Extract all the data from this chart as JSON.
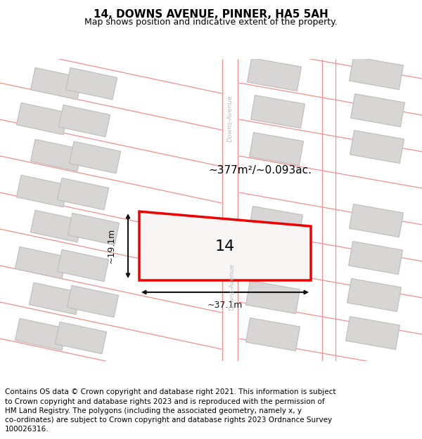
{
  "title": "14, DOWNS AVENUE, PINNER, HA5 5AH",
  "subtitle": "Map shows position and indicative extent of the property.",
  "footer": "Contains OS data © Crown copyright and database right 2021. This information is subject to Crown copyright and database rights 2023 and is reproduced with the permission of HM Land Registry. The polygons (including the associated geometry, namely x, y co-ordinates) are subject to Crown copyright and database rights 2023 Ordnance Survey 100026316.",
  "area_label": "~377m²/~0.093ac.",
  "number_label": "14",
  "width_label": "~37.1m",
  "height_label": "~19.1m",
  "bg_color": "#eeebeb",
  "road_fill": "#ffffff",
  "road_line": "#f09090",
  "building_fill": "#d8d5d5",
  "building_border": "#c0bcbc",
  "highlight_fill": "#f8f5f5",
  "highlight_border": "#ee0000",
  "street_label_color": "#c0bbbb",
  "dim_color": "#111111",
  "title_fontsize": 11,
  "subtitle_fontsize": 9,
  "footer_fontsize": 7.5,
  "area_fontsize": 11,
  "number_fontsize": 16,
  "dim_fontsize": 9
}
